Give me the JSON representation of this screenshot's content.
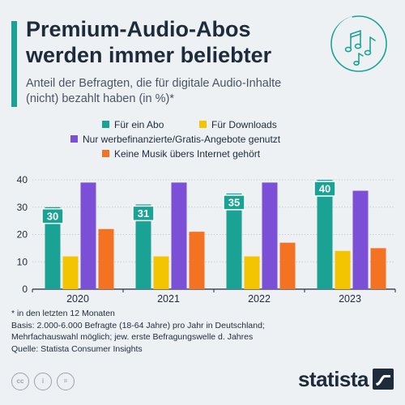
{
  "header": {
    "title_line1": "Premium-Audio-Abos",
    "title_line2": "werden immer beliebter",
    "subtitle_line1": "Anteil der Befragten, die für digitale Audio-Inhalte",
    "subtitle_line2": "(nicht) bezahlt haben (in %)*"
  },
  "icons": {
    "header_icon": "music-notes-icon",
    "license_icons": [
      "cc-icon",
      "attribution-icon",
      "no-derivatives-icon"
    ],
    "logo_mark": "statista-logo-icon"
  },
  "colors": {
    "abo": "#1aa394",
    "downloads": "#f5c400",
    "gratis": "#7b4fd6",
    "keine": "#f47322",
    "accent": "#1aa394"
  },
  "chart_data": {
    "type": "bar",
    "categories": [
      "2020",
      "2021",
      "2022",
      "2023"
    ],
    "series": [
      {
        "name": "Für ein Abo",
        "values": [
          30,
          31,
          35,
          40
        ],
        "labeled": true
      },
      {
        "name": "Für Downloads",
        "values": [
          12,
          12,
          12,
          14
        ]
      },
      {
        "name": "Nur werbefinanzierte/Gratis-Angebote genutzt",
        "values": [
          39,
          39,
          39,
          36
        ]
      },
      {
        "name": "Keine Musik übers Internet gehört",
        "values": [
          22,
          21,
          17,
          15
        ]
      }
    ],
    "y_ticks": [
      "0",
      "10",
      "20",
      "30",
      "40"
    ],
    "ylim": [
      0,
      40
    ],
    "grid": true,
    "legend": "top-center"
  },
  "notes": {
    "line1": "* in den letzten 12 Monaten",
    "line2": "Basis: 2.000-6.000 Befragte (18-64 Jahre) pro Jahr in Deutschland;",
    "line3": "Mehrfachauswahl möglich; jew. erste Befragungswelle d. Jahres",
    "line4": "Quelle: Statista Consumer Insights"
  },
  "logo": {
    "text": "statista"
  }
}
